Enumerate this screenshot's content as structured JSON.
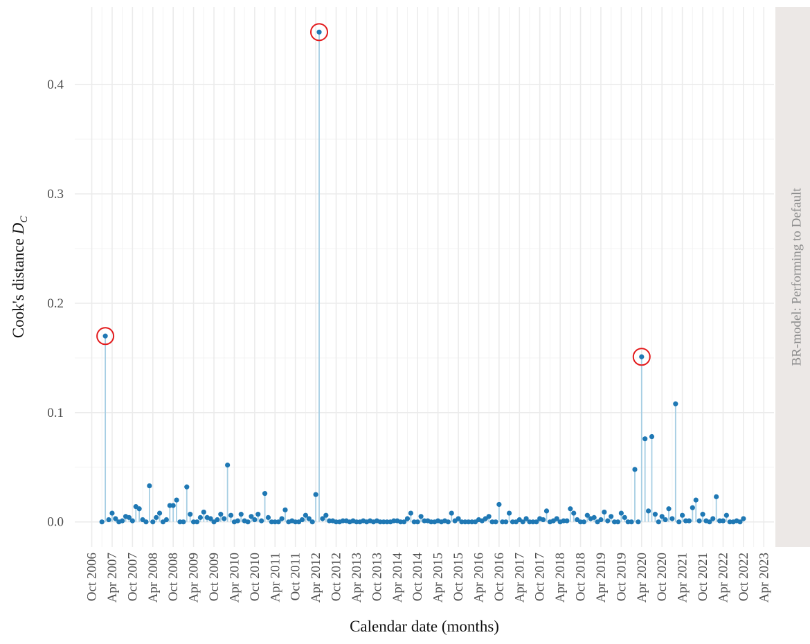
{
  "chart_data": {
    "type": "lollipop",
    "xlabel": "Calendar date (months)",
    "ylabel": "Cook's distance ",
    "ylabel_symbol": "D",
    "ylabel_subscript": "C",
    "facet_label": "BR-model: Performing to Default",
    "point_color": "#1f78b4",
    "stem_color": "#a6cee3",
    "highlight_color": "#e31a1c",
    "highlight_x": [
      "2007-02",
      "2012-05",
      "2020-04"
    ],
    "grid": true,
    "ylim": [
      -0.023,
      0.471
    ],
    "yticks": [
      {
        "value": 0,
        "label": "0.0"
      },
      0.1,
      0.2,
      0.3,
      0.4
    ],
    "xlim": [
      "2006-05",
      "2023-07"
    ],
    "xticks": [
      {
        "value": "2006-10",
        "label": "Oct 2006"
      },
      {
        "value": "2007-04",
        "label": "Apr 2007"
      },
      {
        "value": "2007-10",
        "label": "Oct 2007"
      },
      {
        "value": "2008-04",
        "label": "Apr 2008"
      },
      {
        "value": "2008-10",
        "label": "Oct 2008"
      },
      {
        "value": "2009-04",
        "label": "Apr 2009"
      },
      {
        "value": "2009-10",
        "label": "Oct 2009"
      },
      {
        "value": "2010-04",
        "label": "Apr 2010"
      },
      {
        "value": "2010-10",
        "label": "Oct 2010"
      },
      {
        "value": "2011-04",
        "label": "Apr 2011"
      },
      {
        "value": "2011-10",
        "label": "Oct 2011"
      },
      {
        "value": "2012-04",
        "label": "Apr 2012"
      },
      {
        "value": "2012-10",
        "label": "Oct 2012"
      },
      {
        "value": "2013-04",
        "label": "Apr 2013"
      },
      {
        "value": "2013-10",
        "label": "Oct 2013"
      },
      {
        "value": "2014-04",
        "label": "Apr 2014"
      },
      {
        "value": "2014-10",
        "label": "Oct 2014"
      },
      {
        "value": "2015-04",
        "label": "Apr 2015"
      },
      {
        "value": "2015-10",
        "label": "Oct 2015"
      },
      {
        "value": "2016-04",
        "label": "Apr 2016"
      },
      {
        "value": "2016-10",
        "label": "Oct 2016"
      },
      {
        "value": "2017-04",
        "label": "Apr 2017"
      },
      {
        "value": "2017-10",
        "label": "Oct 2017"
      },
      {
        "value": "2018-04",
        "label": "Apr 2018"
      },
      {
        "value": "2018-10",
        "label": "Oct 2018"
      },
      {
        "value": "2019-04",
        "label": "Apr 2019"
      },
      {
        "value": "2019-10",
        "label": "Oct 2019"
      },
      {
        "value": "2020-04",
        "label": "Apr 2020"
      },
      {
        "value": "2020-10",
        "label": "Oct 2020"
      },
      {
        "value": "2021-04",
        "label": "Apr 2021"
      },
      {
        "value": "2021-10",
        "label": "Oct 2021"
      },
      {
        "value": "2022-04",
        "label": "Apr 2022"
      },
      {
        "value": "2022-10",
        "label": "Oct 2022"
      },
      {
        "value": "2023-04",
        "label": "Apr 2023"
      }
    ],
    "x": [
      "2007-01",
      "2007-02",
      "2007-03",
      "2007-04",
      "2007-05",
      "2007-06",
      "2007-07",
      "2007-08",
      "2007-09",
      "2007-10",
      "2007-11",
      "2007-12",
      "2008-01",
      "2008-02",
      "2008-03",
      "2008-04",
      "2008-05",
      "2008-06",
      "2008-07",
      "2008-08",
      "2008-09",
      "2008-10",
      "2008-11",
      "2008-12",
      "2009-01",
      "2009-02",
      "2009-03",
      "2009-04",
      "2009-05",
      "2009-06",
      "2009-07",
      "2009-08",
      "2009-09",
      "2009-10",
      "2009-11",
      "2009-12",
      "2010-01",
      "2010-02",
      "2010-03",
      "2010-04",
      "2010-05",
      "2010-06",
      "2010-07",
      "2010-08",
      "2010-09",
      "2010-10",
      "2010-11",
      "2010-12",
      "2011-01",
      "2011-02",
      "2011-03",
      "2011-04",
      "2011-05",
      "2011-06",
      "2011-07",
      "2011-08",
      "2011-09",
      "2011-10",
      "2011-11",
      "2011-12",
      "2012-01",
      "2012-02",
      "2012-03",
      "2012-04",
      "2012-05",
      "2012-06",
      "2012-07",
      "2012-08",
      "2012-09",
      "2012-10",
      "2012-11",
      "2012-12",
      "2013-01",
      "2013-02",
      "2013-03",
      "2013-04",
      "2013-05",
      "2013-06",
      "2013-07",
      "2013-08",
      "2013-09",
      "2013-10",
      "2013-11",
      "2013-12",
      "2014-01",
      "2014-02",
      "2014-03",
      "2014-04",
      "2014-05",
      "2014-06",
      "2014-07",
      "2014-08",
      "2014-09",
      "2014-10",
      "2014-11",
      "2014-12",
      "2015-01",
      "2015-02",
      "2015-03",
      "2015-04",
      "2015-05",
      "2015-06",
      "2015-07",
      "2015-08",
      "2015-09",
      "2015-10",
      "2015-11",
      "2015-12",
      "2016-01",
      "2016-02",
      "2016-03",
      "2016-04",
      "2016-05",
      "2016-06",
      "2016-07",
      "2016-08",
      "2016-09",
      "2016-10",
      "2016-11",
      "2016-12",
      "2017-01",
      "2017-02",
      "2017-03",
      "2017-04",
      "2017-05",
      "2017-06",
      "2017-07",
      "2017-08",
      "2017-09",
      "2017-10",
      "2017-11",
      "2017-12",
      "2018-01",
      "2018-02",
      "2018-03",
      "2018-04",
      "2018-05",
      "2018-06",
      "2018-07",
      "2018-08",
      "2018-09",
      "2018-10",
      "2018-11",
      "2018-12",
      "2019-01",
      "2019-02",
      "2019-03",
      "2019-04",
      "2019-05",
      "2019-06",
      "2019-07",
      "2019-08",
      "2019-09",
      "2019-10",
      "2019-11",
      "2019-12",
      "2020-01",
      "2020-02",
      "2020-03",
      "2020-04",
      "2020-05",
      "2020-06",
      "2020-07",
      "2020-08",
      "2020-09",
      "2020-10",
      "2020-11",
      "2020-12",
      "2021-01",
      "2021-02",
      "2021-03",
      "2021-04",
      "2021-05",
      "2021-06",
      "2021-07",
      "2021-08",
      "2021-09",
      "2021-10",
      "2021-11",
      "2021-12",
      "2022-01",
      "2022-02",
      "2022-03",
      "2022-04",
      "2022-05",
      "2022-06",
      "2022-07",
      "2022-08",
      "2022-09",
      "2022-10"
    ],
    "values": [
      0.0,
      0.17,
      0.002,
      0.008,
      0.003,
      0.0,
      0.001,
      0.005,
      0.004,
      0.001,
      0.014,
      0.012,
      0.002,
      0.0,
      0.033,
      0.0,
      0.004,
      0.008,
      0.0,
      0.002,
      0.015,
      0.015,
      0.02,
      0.0,
      0.0,
      0.032,
      0.007,
      0.0,
      0.0,
      0.004,
      0.009,
      0.004,
      0.003,
      0.0,
      0.002,
      0.007,
      0.003,
      0.052,
      0.006,
      0.0,
      0.001,
      0.007,
      0.001,
      0.0,
      0.005,
      0.002,
      0.007,
      0.001,
      0.026,
      0.004,
      0.0,
      0.0,
      0.0,
      0.003,
      0.011,
      0.0,
      0.001,
      0.0,
      0.0,
      0.002,
      0.006,
      0.003,
      0.0,
      0.025,
      0.448,
      0.003,
      0.006,
      0.001,
      0.001,
      0.0,
      0.0,
      0.001,
      0.001,
      0.0,
      0.001,
      0.0,
      0.0,
      0.001,
      0.0,
      0.001,
      0.0,
      0.001,
      0.0,
      0.0,
      0.0,
      0.0,
      0.001,
      0.001,
      0.0,
      0.0,
      0.003,
      0.008,
      0.0,
      0.0,
      0.005,
      0.001,
      0.001,
      0.0,
      0.0,
      0.001,
      0.0,
      0.001,
      0.0,
      0.008,
      0.001,
      0.003,
      0.0,
      0.0,
      0.0,
      0.0,
      0.0,
      0.002,
      0.001,
      0.003,
      0.005,
      0.0,
      0.0,
      0.016,
      0.0,
      0.0,
      0.008,
      0.0,
      0.0,
      0.002,
      0.0,
      0.003,
      0.0,
      0.0,
      0.0,
      0.003,
      0.002,
      0.01,
      0.0,
      0.001,
      0.003,
      0.0,
      0.001,
      0.001,
      0.012,
      0.008,
      0.002,
      0.0,
      0.0,
      0.006,
      0.003,
      0.004,
      0.0,
      0.002,
      0.009,
      0.001,
      0.005,
      0.0,
      0.0,
      0.008,
      0.004,
      0.0,
      0.0,
      0.048,
      0.0,
      0.151,
      0.076,
      0.01,
      0.078,
      0.007,
      0.0,
      0.005,
      0.002,
      0.012,
      0.003,
      0.108,
      0.0,
      0.006,
      0.001,
      0.001,
      0.013,
      0.02,
      0.001,
      0.007,
      0.001,
      0.0,
      0.003,
      0.023,
      0.001,
      0.001,
      0.006,
      0.0,
      0.0,
      0.001,
      0.0,
      0.003
    ]
  }
}
